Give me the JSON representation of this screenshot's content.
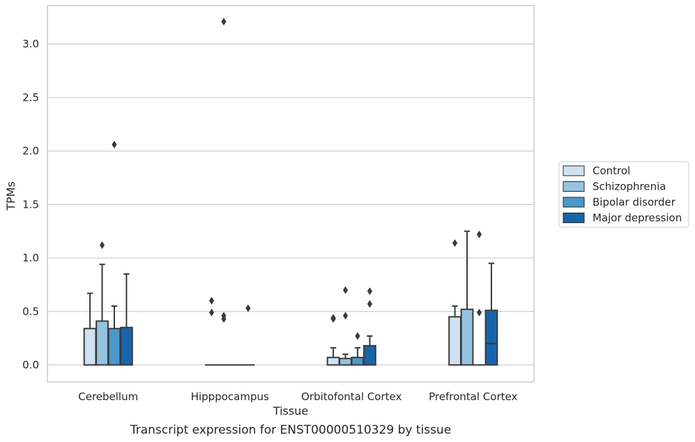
{
  "chart_data": {
    "type": "box",
    "title": "",
    "caption": "Transcript expression for ENST00000510329 by tissue",
    "xlabel": "Tissue",
    "ylabel": "TPMs",
    "ylim": [
      -0.16,
      3.36
    ],
    "yticks": [
      "0.0",
      "0.5",
      "1.0",
      "1.5",
      "2.0",
      "2.5",
      "3.0"
    ],
    "grid": true,
    "legend_position": "right-center",
    "categories": [
      "Cerebellum",
      "Hipppocampus",
      "Orbitofontal Cortex",
      "Prefrontal Cortex"
    ],
    "series": [
      {
        "name": "Control",
        "color": "#d0e1f2",
        "boxes": [
          {
            "q1": 0.0,
            "median": 0.0,
            "q3": 0.34,
            "whislo": 0.0,
            "whishi": 0.67,
            "fliers": []
          },
          {
            "q1": 0.0,
            "median": 0.0,
            "q3": 0.0,
            "whislo": 0.0,
            "whishi": 0.0,
            "fliers": [
              0.6,
              0.49
            ]
          },
          {
            "q1": 0.0,
            "median": 0.0,
            "q3": 0.07,
            "whislo": 0.0,
            "whishi": 0.16,
            "fliers": [
              0.43,
              0.44
            ]
          },
          {
            "q1": 0.0,
            "median": 0.0,
            "q3": 0.45,
            "whislo": 0.0,
            "whishi": 0.55,
            "fliers": [
              1.14
            ]
          }
        ]
      },
      {
        "name": "Schizophrenia",
        "color": "#94c4df",
        "boxes": [
          {
            "q1": 0.0,
            "median": 0.0,
            "q3": 0.41,
            "whislo": 0.0,
            "whishi": 0.94,
            "fliers": [
              1.12
            ]
          },
          {
            "q1": 0.0,
            "median": 0.0,
            "q3": 0.0,
            "whislo": 0.0,
            "whishi": 0.0,
            "fliers": [
              3.21,
              0.46,
              0.43
            ]
          },
          {
            "q1": 0.0,
            "median": 0.0,
            "q3": 0.06,
            "whislo": 0.0,
            "whishi": 0.1,
            "fliers": [
              0.7,
              0.46
            ]
          },
          {
            "q1": 0.0,
            "median": 0.0,
            "q3": 0.52,
            "whislo": 0.0,
            "whishi": 1.25,
            "fliers": []
          }
        ]
      },
      {
        "name": "Bipolar disorder",
        "color": "#4a98c9",
        "boxes": [
          {
            "q1": 0.0,
            "median": 0.0,
            "q3": 0.34,
            "whislo": 0.0,
            "whishi": 0.55,
            "fliers": [
              2.06
            ]
          },
          {
            "q1": 0.0,
            "median": 0.0,
            "q3": 0.0,
            "whislo": 0.0,
            "whishi": 0.0,
            "fliers": []
          },
          {
            "q1": 0.0,
            "median": 0.0,
            "q3": 0.07,
            "whislo": 0.0,
            "whishi": 0.16,
            "fliers": [
              0.27
            ]
          },
          {
            "q1": 0.0,
            "median": 0.0,
            "q3": 0.0,
            "whislo": 0.0,
            "whishi": 0.0,
            "fliers": [
              1.22,
              0.49
            ]
          }
        ]
      },
      {
        "name": "Major depression",
        "color": "#1764ab",
        "boxes": [
          {
            "q1": 0.0,
            "median": 0.0,
            "q3": 0.35,
            "whislo": 0.0,
            "whishi": 0.85,
            "fliers": []
          },
          {
            "q1": 0.0,
            "median": 0.0,
            "q3": 0.0,
            "whislo": 0.0,
            "whishi": 0.0,
            "fliers": [
              0.53
            ]
          },
          {
            "q1": 0.0,
            "median": 0.0,
            "q3": 0.18,
            "whislo": 0.0,
            "whishi": 0.27,
            "fliers": [
              0.69,
              0.57
            ]
          },
          {
            "q1": 0.0,
            "median": 0.2,
            "q3": 0.51,
            "whislo": 0.0,
            "whishi": 0.95,
            "fliers": []
          }
        ]
      }
    ]
  }
}
